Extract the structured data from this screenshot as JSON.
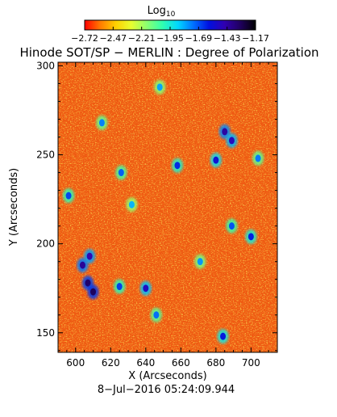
{
  "chart_data": {
    "type": "heatmap",
    "title": "Hinode SOT/SP − MERLIN : Degree of Polarization",
    "date_label": "8−Jul−2016 05:24:09.944",
    "xlabel": "X (Arcseconds)",
    "ylabel": "Y (Arcseconds)",
    "xlim": [
      590,
      715
    ],
    "ylim": [
      139,
      302
    ],
    "x_ticks": [
      600,
      620,
      640,
      660,
      680,
      700
    ],
    "y_ticks": [
      150,
      200,
      250,
      300
    ],
    "colorbar": {
      "label": "Log",
      "label_subscript": "10",
      "range": [
        -2.72,
        -1.17
      ],
      "tick_labels": [
        "−2.72",
        "−2.47",
        "−2.21",
        "−1.95",
        "−1.69",
        "−1.43",
        "−1.17"
      ],
      "colors": [
        "#ff0000",
        "#ff7a00",
        "#ffd000",
        "#e8ff30",
        "#8cff70",
        "#30ffb0",
        "#00d8ff",
        "#0070ff",
        "#0010e0",
        "#3000b0",
        "#200060",
        "#000000"
      ]
    },
    "background_level": -2.62,
    "patches": [
      {
        "x": 607,
        "y": 178,
        "level": -1.32
      },
      {
        "x": 604,
        "y": 188,
        "level": -1.4
      },
      {
        "x": 608,
        "y": 193,
        "level": -1.45
      },
      {
        "x": 610,
        "y": 173,
        "level": -1.3
      },
      {
        "x": 685,
        "y": 263,
        "level": -1.42
      },
      {
        "x": 689,
        "y": 258,
        "level": -1.48
      },
      {
        "x": 680,
        "y": 247,
        "level": -1.55
      },
      {
        "x": 640,
        "y": 175,
        "level": -1.5
      },
      {
        "x": 625,
        "y": 176,
        "level": -1.65
      },
      {
        "x": 626,
        "y": 240,
        "level": -1.7
      },
      {
        "x": 615,
        "y": 268,
        "level": -1.75
      },
      {
        "x": 700,
        "y": 204,
        "level": -1.6
      },
      {
        "x": 689,
        "y": 210,
        "level": -1.68
      },
      {
        "x": 658,
        "y": 244,
        "level": -1.62
      },
      {
        "x": 684,
        "y": 148,
        "level": -1.58
      },
      {
        "x": 646,
        "y": 160,
        "level": -1.72
      },
      {
        "x": 596,
        "y": 227,
        "level": -1.66
      },
      {
        "x": 671,
        "y": 190,
        "level": -1.78
      },
      {
        "x": 704,
        "y": 248,
        "level": -1.74
      },
      {
        "x": 648,
        "y": 288,
        "level": -1.8
      },
      {
        "x": 632,
        "y": 222,
        "level": -1.82
      }
    ]
  }
}
